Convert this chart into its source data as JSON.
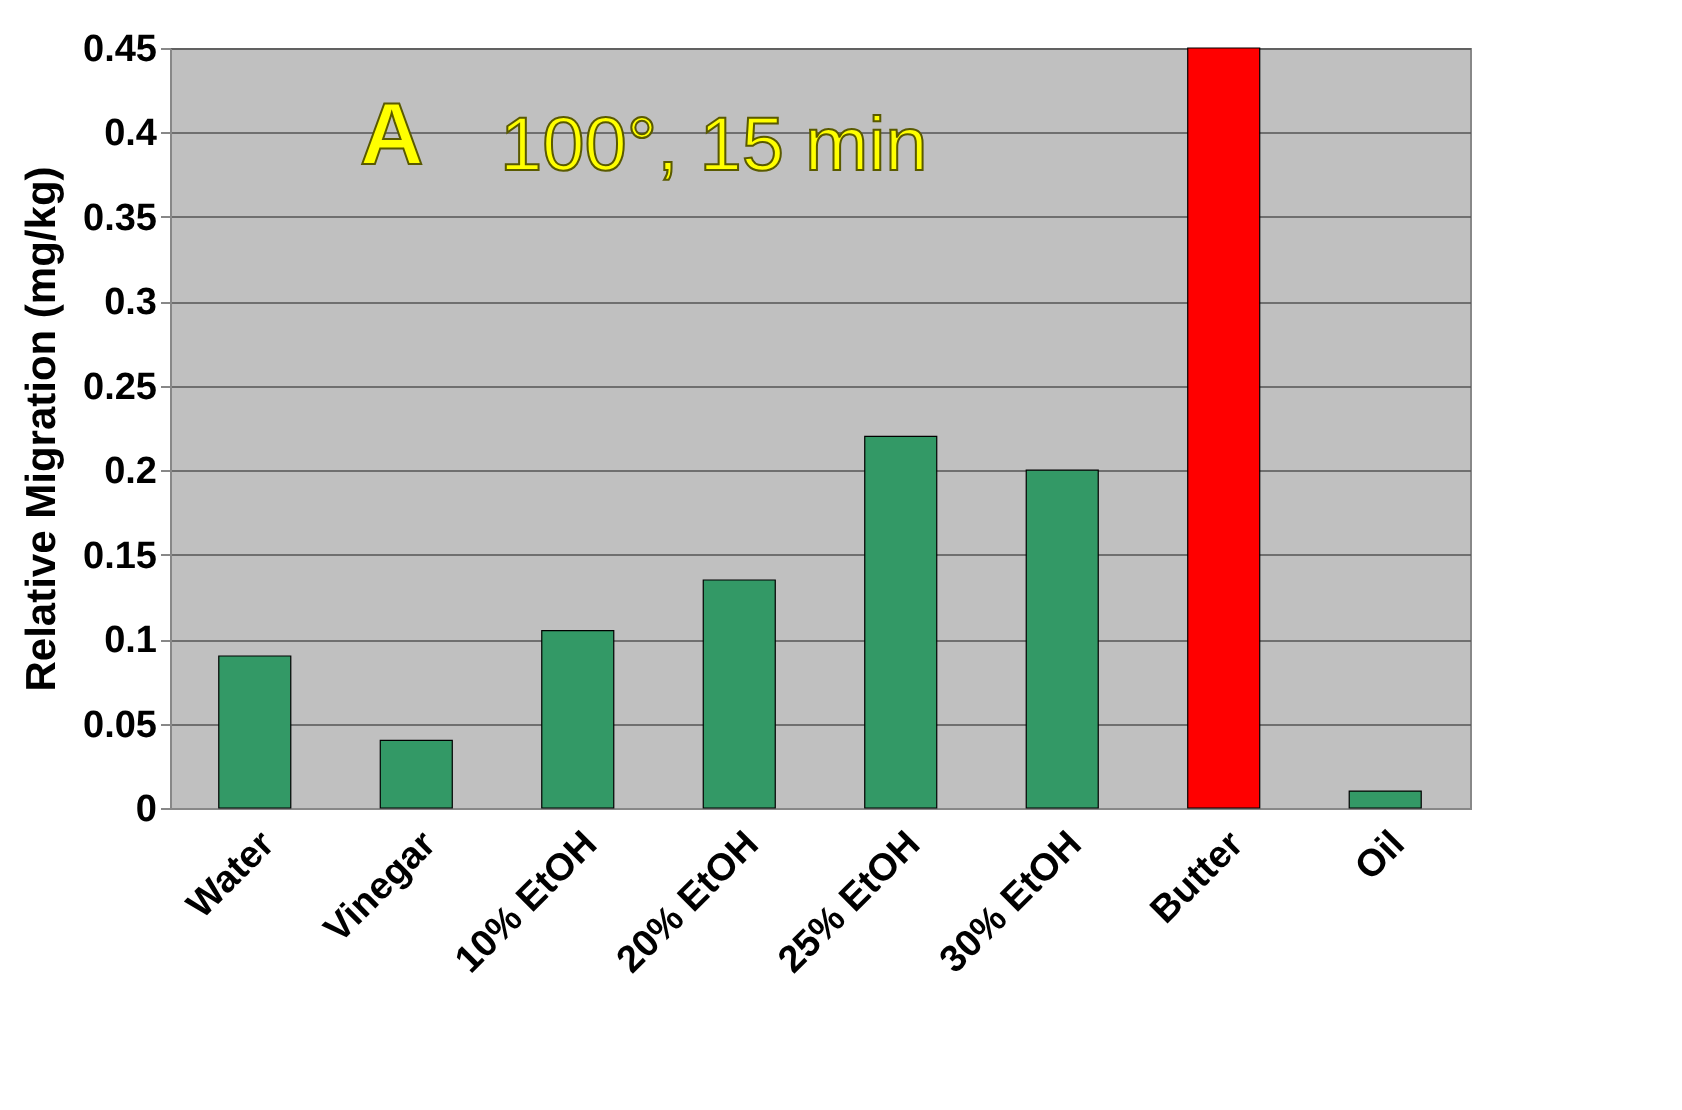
{
  "chart_data": {
    "type": "bar",
    "ylabel": "Relative Migration (mg/kg)",
    "categories": [
      "Water",
      "Vinegar",
      "10% EtOH",
      "20% EtOH",
      "25% EtOH",
      "30% EtOH",
      "Butter",
      "Oil"
    ],
    "values": [
      0.09,
      0.04,
      0.105,
      0.135,
      0.22,
      0.2,
      0.45,
      0.01
    ],
    "colors": [
      "#339966",
      "#339966",
      "#339966",
      "#339966",
      "#339966",
      "#339966",
      "#ff0000",
      "#339966"
    ],
    "ylim": [
      0,
      0.45
    ],
    "yticks": [
      0,
      0.05,
      0.1,
      0.15,
      0.2,
      0.25,
      0.3,
      0.35,
      0.4,
      0.45
    ],
    "grid": true,
    "annotations": [
      "A",
      "100°, 15 min"
    ]
  }
}
